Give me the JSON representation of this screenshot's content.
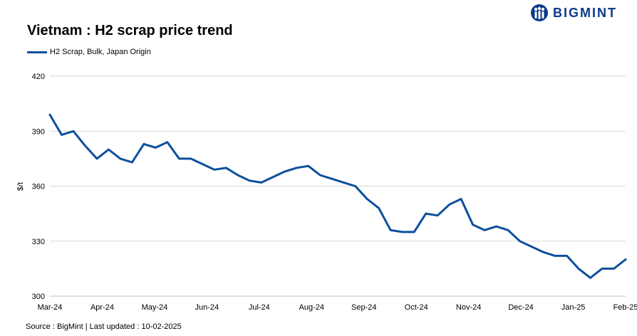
{
  "brand": {
    "name": "BIGMINT",
    "color": "#0b3a8a"
  },
  "source": "Source : BigMint | Last updated : 10-02-2025",
  "chart_data": {
    "type": "line",
    "title": "Vietnam : H2 scrap price trend",
    "ylabel": "$/t",
    "xlabel": "",
    "ylim": [
      300,
      420
    ],
    "yticks": [
      300,
      330,
      360,
      390,
      420
    ],
    "grid": true,
    "legend_position": "top-left",
    "xticks": [
      "Mar-24",
      "Apr-24",
      "May-24",
      "Jun-24",
      "Jul-24",
      "Aug-24",
      "Sep-24",
      "Oct-24",
      "Nov-24",
      "Dec-24",
      "Jan-25",
      "Feb-25"
    ],
    "series": [
      {
        "name": "H2 Scrap, Bulk, Japan Origin",
        "color": "#0b4f9c",
        "values": [
          399,
          388,
          390,
          382,
          375,
          380,
          375,
          373,
          383,
          381,
          384,
          375,
          375,
          372,
          369,
          370,
          366,
          363,
          362,
          365,
          368,
          370,
          371,
          366,
          364,
          362,
          360,
          353,
          348,
          336,
          335,
          335,
          345,
          344,
          350,
          353,
          339,
          336,
          338,
          336,
          330,
          327,
          324,
          322,
          322,
          315,
          310,
          315,
          315,
          320
        ]
      }
    ]
  }
}
